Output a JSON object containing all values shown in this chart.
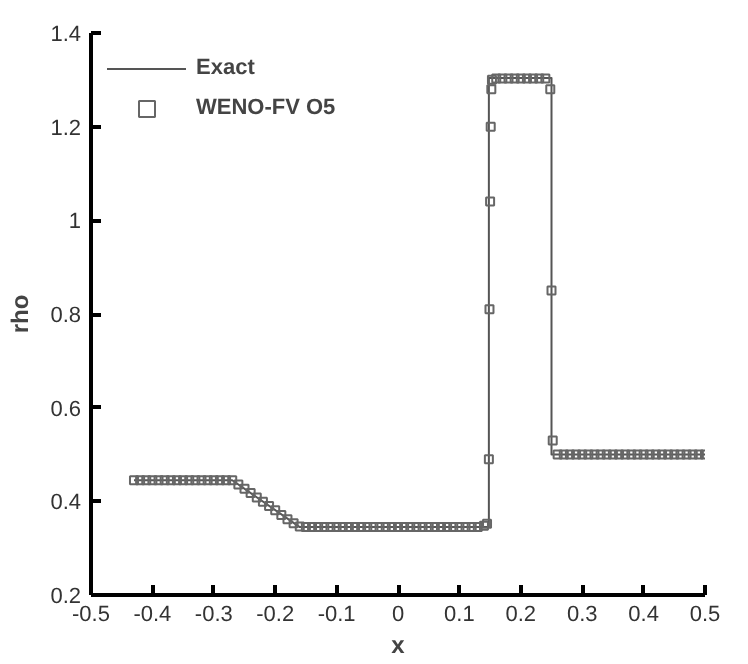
{
  "chart_data": {
    "type": "line",
    "xlabel": "x",
    "ylabel": "rho",
    "xlim": [
      -0.5,
      0.5
    ],
    "ylim": [
      0.2,
      1.4
    ],
    "xticks": [
      -0.5,
      -0.4,
      -0.3,
      -0.2,
      -0.1,
      0,
      0.1,
      0.2,
      0.3,
      0.4,
      0.5
    ],
    "yticks": [
      0.2,
      0.4,
      0.6,
      0.8,
      1,
      1.2,
      1.4
    ],
    "grid": false,
    "legend": "top left",
    "series": [
      {
        "name": "Exact",
        "color": "#555555",
        "line_style": "solid",
        "marker": "none",
        "x": [
          -0.43,
          -0.27,
          -0.16,
          0.148,
          0.148,
          0.25,
          0.25,
          0.5
        ],
        "values": [
          0.445,
          0.445,
          0.345,
          0.345,
          1.304,
          1.304,
          0.5,
          0.5
        ]
      },
      {
        "name": "WENO-FV O5",
        "type": "scatter",
        "color": "#666666",
        "marker": "square",
        "x": [
          -0.43,
          -0.42,
          -0.41,
          -0.4,
          -0.39,
          -0.38,
          -0.37,
          -0.36,
          -0.35,
          -0.34,
          -0.33,
          -0.32,
          -0.31,
          -0.3,
          -0.29,
          -0.28,
          -0.27,
          -0.26,
          -0.25,
          -0.24,
          -0.23,
          -0.22,
          -0.21,
          -0.2,
          -0.19,
          -0.18,
          -0.17,
          -0.16,
          -0.15,
          -0.14,
          -0.13,
          -0.12,
          -0.11,
          -0.1,
          -0.09,
          -0.08,
          -0.07,
          -0.06,
          -0.05,
          -0.04,
          -0.03,
          -0.02,
          -0.01,
          0,
          0.01,
          0.02,
          0.03,
          0.04,
          0.05,
          0.06,
          0.07,
          0.08,
          0.09,
          0.1,
          0.11,
          0.12,
          0.13,
          0.14,
          0.145,
          0.148,
          0.149,
          0.15,
          0.151,
          0.152,
          0.153,
          0.16,
          0.17,
          0.18,
          0.19,
          0.2,
          0.21,
          0.22,
          0.23,
          0.24,
          0.248,
          0.25,
          0.252,
          0.26,
          0.27,
          0.28,
          0.29,
          0.3,
          0.31,
          0.32,
          0.33,
          0.34,
          0.35,
          0.36,
          0.37,
          0.38,
          0.39,
          0.4,
          0.41,
          0.42,
          0.43,
          0.44,
          0.45,
          0.46,
          0.47,
          0.48,
          0.49,
          0.5
        ],
        "values": [
          0.445,
          0.445,
          0.445,
          0.445,
          0.445,
          0.445,
          0.445,
          0.445,
          0.445,
          0.445,
          0.445,
          0.445,
          0.445,
          0.445,
          0.445,
          0.445,
          0.445,
          0.436,
          0.427,
          0.418,
          0.408,
          0.399,
          0.39,
          0.381,
          0.371,
          0.362,
          0.353,
          0.346,
          0.345,
          0.345,
          0.345,
          0.345,
          0.345,
          0.345,
          0.345,
          0.345,
          0.345,
          0.345,
          0.345,
          0.345,
          0.345,
          0.345,
          0.345,
          0.345,
          0.345,
          0.345,
          0.345,
          0.345,
          0.345,
          0.345,
          0.345,
          0.345,
          0.345,
          0.345,
          0.345,
          0.345,
          0.345,
          0.348,
          0.352,
          0.49,
          0.81,
          1.04,
          1.2,
          1.28,
          1.3,
          1.303,
          1.303,
          1.303,
          1.303,
          1.303,
          1.303,
          1.303,
          1.303,
          1.303,
          1.28,
          0.85,
          0.53,
          0.5,
          0.5,
          0.5,
          0.5,
          0.5,
          0.5,
          0.5,
          0.5,
          0.5,
          0.5,
          0.5,
          0.5,
          0.5,
          0.5,
          0.5,
          0.5,
          0.5,
          0.5,
          0.5,
          0.5,
          0.5,
          0.5,
          0.5,
          0.5,
          0.5
        ]
      }
    ]
  }
}
